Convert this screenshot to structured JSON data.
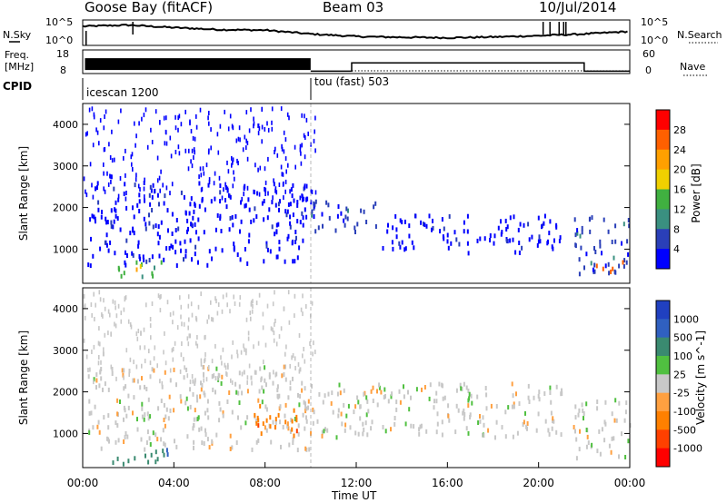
{
  "header": {
    "station": "Goose Bay (fitACF)",
    "beam": "Beam 03",
    "date": "10/Jul/2014"
  },
  "noise_panel": {
    "left_label": "N.Sky",
    "right_label": "N.Search",
    "left_ticks": [
      "10^5",
      "10^0"
    ],
    "right_ticks": [
      "10^5",
      "10^0"
    ]
  },
  "freq_panel": {
    "left_label_line1": "Freq.",
    "left_label_line2": "[MHz]",
    "left_ticks": [
      "18",
      "8"
    ],
    "right_label": "Nave",
    "right_ticks": [
      "60",
      "0"
    ]
  },
  "cpid": {
    "label": "CPID",
    "segments": [
      {
        "start_hour": 0,
        "text": "icescan 1200"
      },
      {
        "start_hour": 10,
        "text": "tou (fast) 503"
      }
    ]
  },
  "power_panel": {
    "ylabel": "Slant Range [km]",
    "yticks": [
      1000,
      2000,
      3000,
      4000
    ],
    "colorbar_label": "Power [dB]",
    "colorbar_ticks": [
      "28",
      "24",
      "20",
      "16",
      "12",
      "8",
      "4"
    ],
    "colors": [
      "#0000ff",
      "#2a3fb8",
      "#3a9080",
      "#40b040",
      "#f0d000",
      "#ffa000",
      "#ff6000",
      "#ff0000"
    ]
  },
  "velocity_panel": {
    "ylabel": "Slant Range [km]",
    "yticks": [
      1000,
      2000,
      3000,
      4000
    ],
    "colorbar_label": "Velocity [m s^-1]",
    "colorbar_ticks": [
      "1000",
      "500",
      "100",
      "25",
      "-25",
      "-100",
      "-500",
      "-1000"
    ],
    "colors": [
      "#2040c0",
      "#3060c0",
      "#3a8a70",
      "#50c040",
      "#c8c8c8",
      "#ffa040",
      "#ff8000",
      "#ff4000",
      "#ff0000"
    ]
  },
  "xaxis": {
    "label": "Time UT",
    "ticks": [
      "00:00",
      "04:00",
      "08:00",
      "12:00",
      "16:00",
      "20:00",
      "00:00"
    ]
  },
  "chart_data": [
    {
      "type": "line",
      "title": "Goose Bay (fitACF) Beam 03 10/Jul/2014",
      "ylabel": "N.Sky / N.Search",
      "xlim": [
        0,
        24
      ],
      "x": [
        0,
        2,
        4,
        6,
        8,
        10,
        12,
        14,
        16,
        18,
        20,
        22,
        24
      ],
      "series": [
        {
          "name": "N.Sky",
          "values": [
            0.75,
            0.8,
            0.7,
            0.62,
            0.6,
            0.45,
            0.35,
            0.32,
            0.3,
            0.33,
            0.38,
            0.45,
            0.55
          ]
        }
      ]
    },
    {
      "type": "line",
      "ylabel": "Freq. [MHz]",
      "xlim": [
        0,
        24
      ],
      "ylim": [
        8,
        18
      ],
      "x": [
        0,
        10,
        10,
        11.8,
        11.8,
        22,
        22,
        24
      ],
      "series": [
        {
          "name": "Freq.",
          "values": [
            13,
            13,
            9,
            9,
            12.5,
            12.5,
            9,
            9
          ]
        }
      ]
    },
    {
      "type": "heatmap",
      "title": "Power [dB]",
      "xlabel": "Time UT",
      "ylabel": "Slant Range [km]",
      "xlim": [
        0,
        24
      ],
      "ylim": [
        180,
        4500
      ],
      "color_scale": [
        4,
        8,
        12,
        16,
        20,
        24,
        28
      ],
      "regions": [
        {
          "t0": 0.2,
          "t1": 10,
          "r0": 600,
          "r1": 2600,
          "level": 4
        },
        {
          "t0": 1.5,
          "t1": 3.5,
          "r0": 300,
          "r1": 700,
          "level": 16
        },
        {
          "t0": 2.3,
          "t1": 3.0,
          "r0": 400,
          "r1": 600,
          "level": 24
        },
        {
          "t0": 10,
          "t1": 13,
          "r0": 1400,
          "r1": 2200,
          "level": 8
        },
        {
          "t0": 13,
          "t1": 21,
          "r0": 900,
          "r1": 1800,
          "level": 4
        },
        {
          "t0": 21.5,
          "t1": 24,
          "r0": 400,
          "r1": 1800,
          "level": 8
        },
        {
          "t0": 22.5,
          "t1": 24,
          "r0": 450,
          "r1": 700,
          "level": 28
        }
      ]
    },
    {
      "type": "heatmap",
      "title": "Velocity [m s^-1]",
      "xlabel": "Time UT",
      "ylabel": "Slant Range [km]",
      "xlim": [
        0,
        24
      ],
      "ylim": [
        180,
        4500
      ],
      "color_scale": [
        1000,
        500,
        100,
        25,
        -25,
        -100,
        -500,
        -1000
      ],
      "regions": [
        {
          "t0": 0.2,
          "t1": 10,
          "r0": 600,
          "r1": 2600,
          "level": 0
        },
        {
          "t0": 1.0,
          "t1": 4.0,
          "r0": 250,
          "r1": 600,
          "level": 100
        },
        {
          "t0": 7.5,
          "t1": 9.5,
          "r0": 900,
          "r1": 1700,
          "level": -100
        },
        {
          "t0": 10,
          "t1": 21,
          "r0": 900,
          "r1": 2200,
          "level": 0
        },
        {
          "t0": 21.5,
          "t1": 24,
          "r0": 400,
          "r1": 1800,
          "level": 0
        }
      ]
    }
  ]
}
